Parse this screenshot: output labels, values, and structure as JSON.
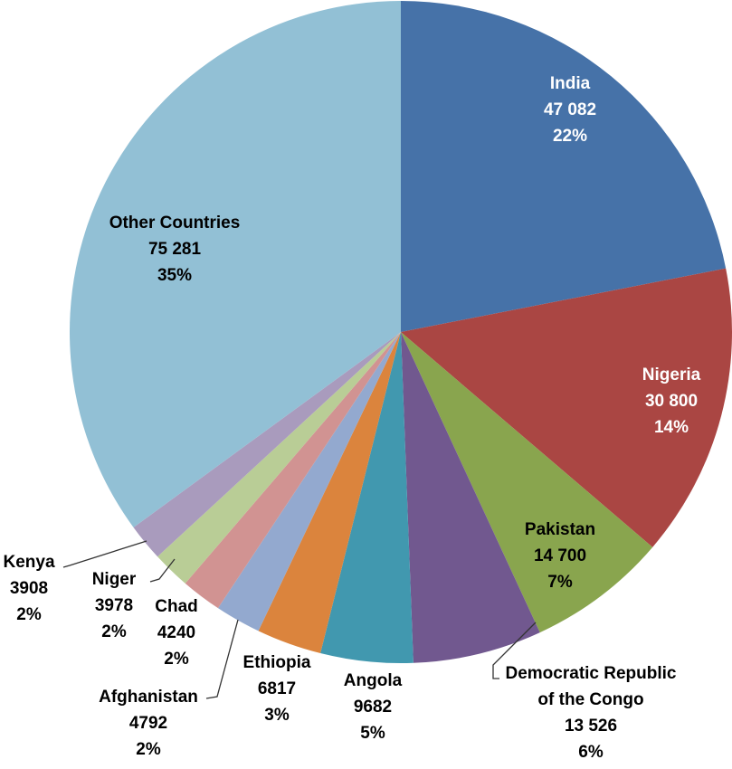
{
  "chart_data": {
    "type": "pie",
    "title": "",
    "categories": [
      "India",
      "Nigeria",
      "Pakistan",
      "Democratic Republic of the Congo",
      "Angola",
      "Ethiopia",
      "Afghanistan",
      "Chad",
      "Niger",
      "Kenya",
      "Other Countries"
    ],
    "label_lines": [
      [
        "India"
      ],
      [
        "Nigeria"
      ],
      [
        "Pakistan"
      ],
      [
        "Democratic Republic",
        "of the Congo"
      ],
      [
        "Angola"
      ],
      [
        "Ethiopia"
      ],
      [
        "Afghanistan"
      ],
      [
        "Chad"
      ],
      [
        "Niger"
      ],
      [
        "Kenya"
      ],
      [
        "Other Countries"
      ]
    ],
    "values": [
      47082,
      30800,
      14700,
      13526,
      9682,
      6817,
      4792,
      4240,
      3978,
      3908,
      75281
    ],
    "value_labels": [
      "47 082",
      "30 800",
      "14 700",
      "13 526",
      "9682",
      "6817",
      "4792",
      "4240",
      "3978",
      "3908",
      "75 281"
    ],
    "percent_labels": [
      "22%",
      "14%",
      "7%",
      "6%",
      "5%",
      "3%",
      "2%",
      "2%",
      "2%",
      "2%",
      "35%"
    ],
    "colors": [
      "#4672A8",
      "#AA4643",
      "#89A54E",
      "#71588F",
      "#4198AF",
      "#DB843D",
      "#93A9CF",
      "#D19392",
      "#B9CD96",
      "#A99BBD",
      "#92C0D5"
    ],
    "start_angle_deg": 0,
    "direction": "clockwise",
    "legend": "none"
  }
}
